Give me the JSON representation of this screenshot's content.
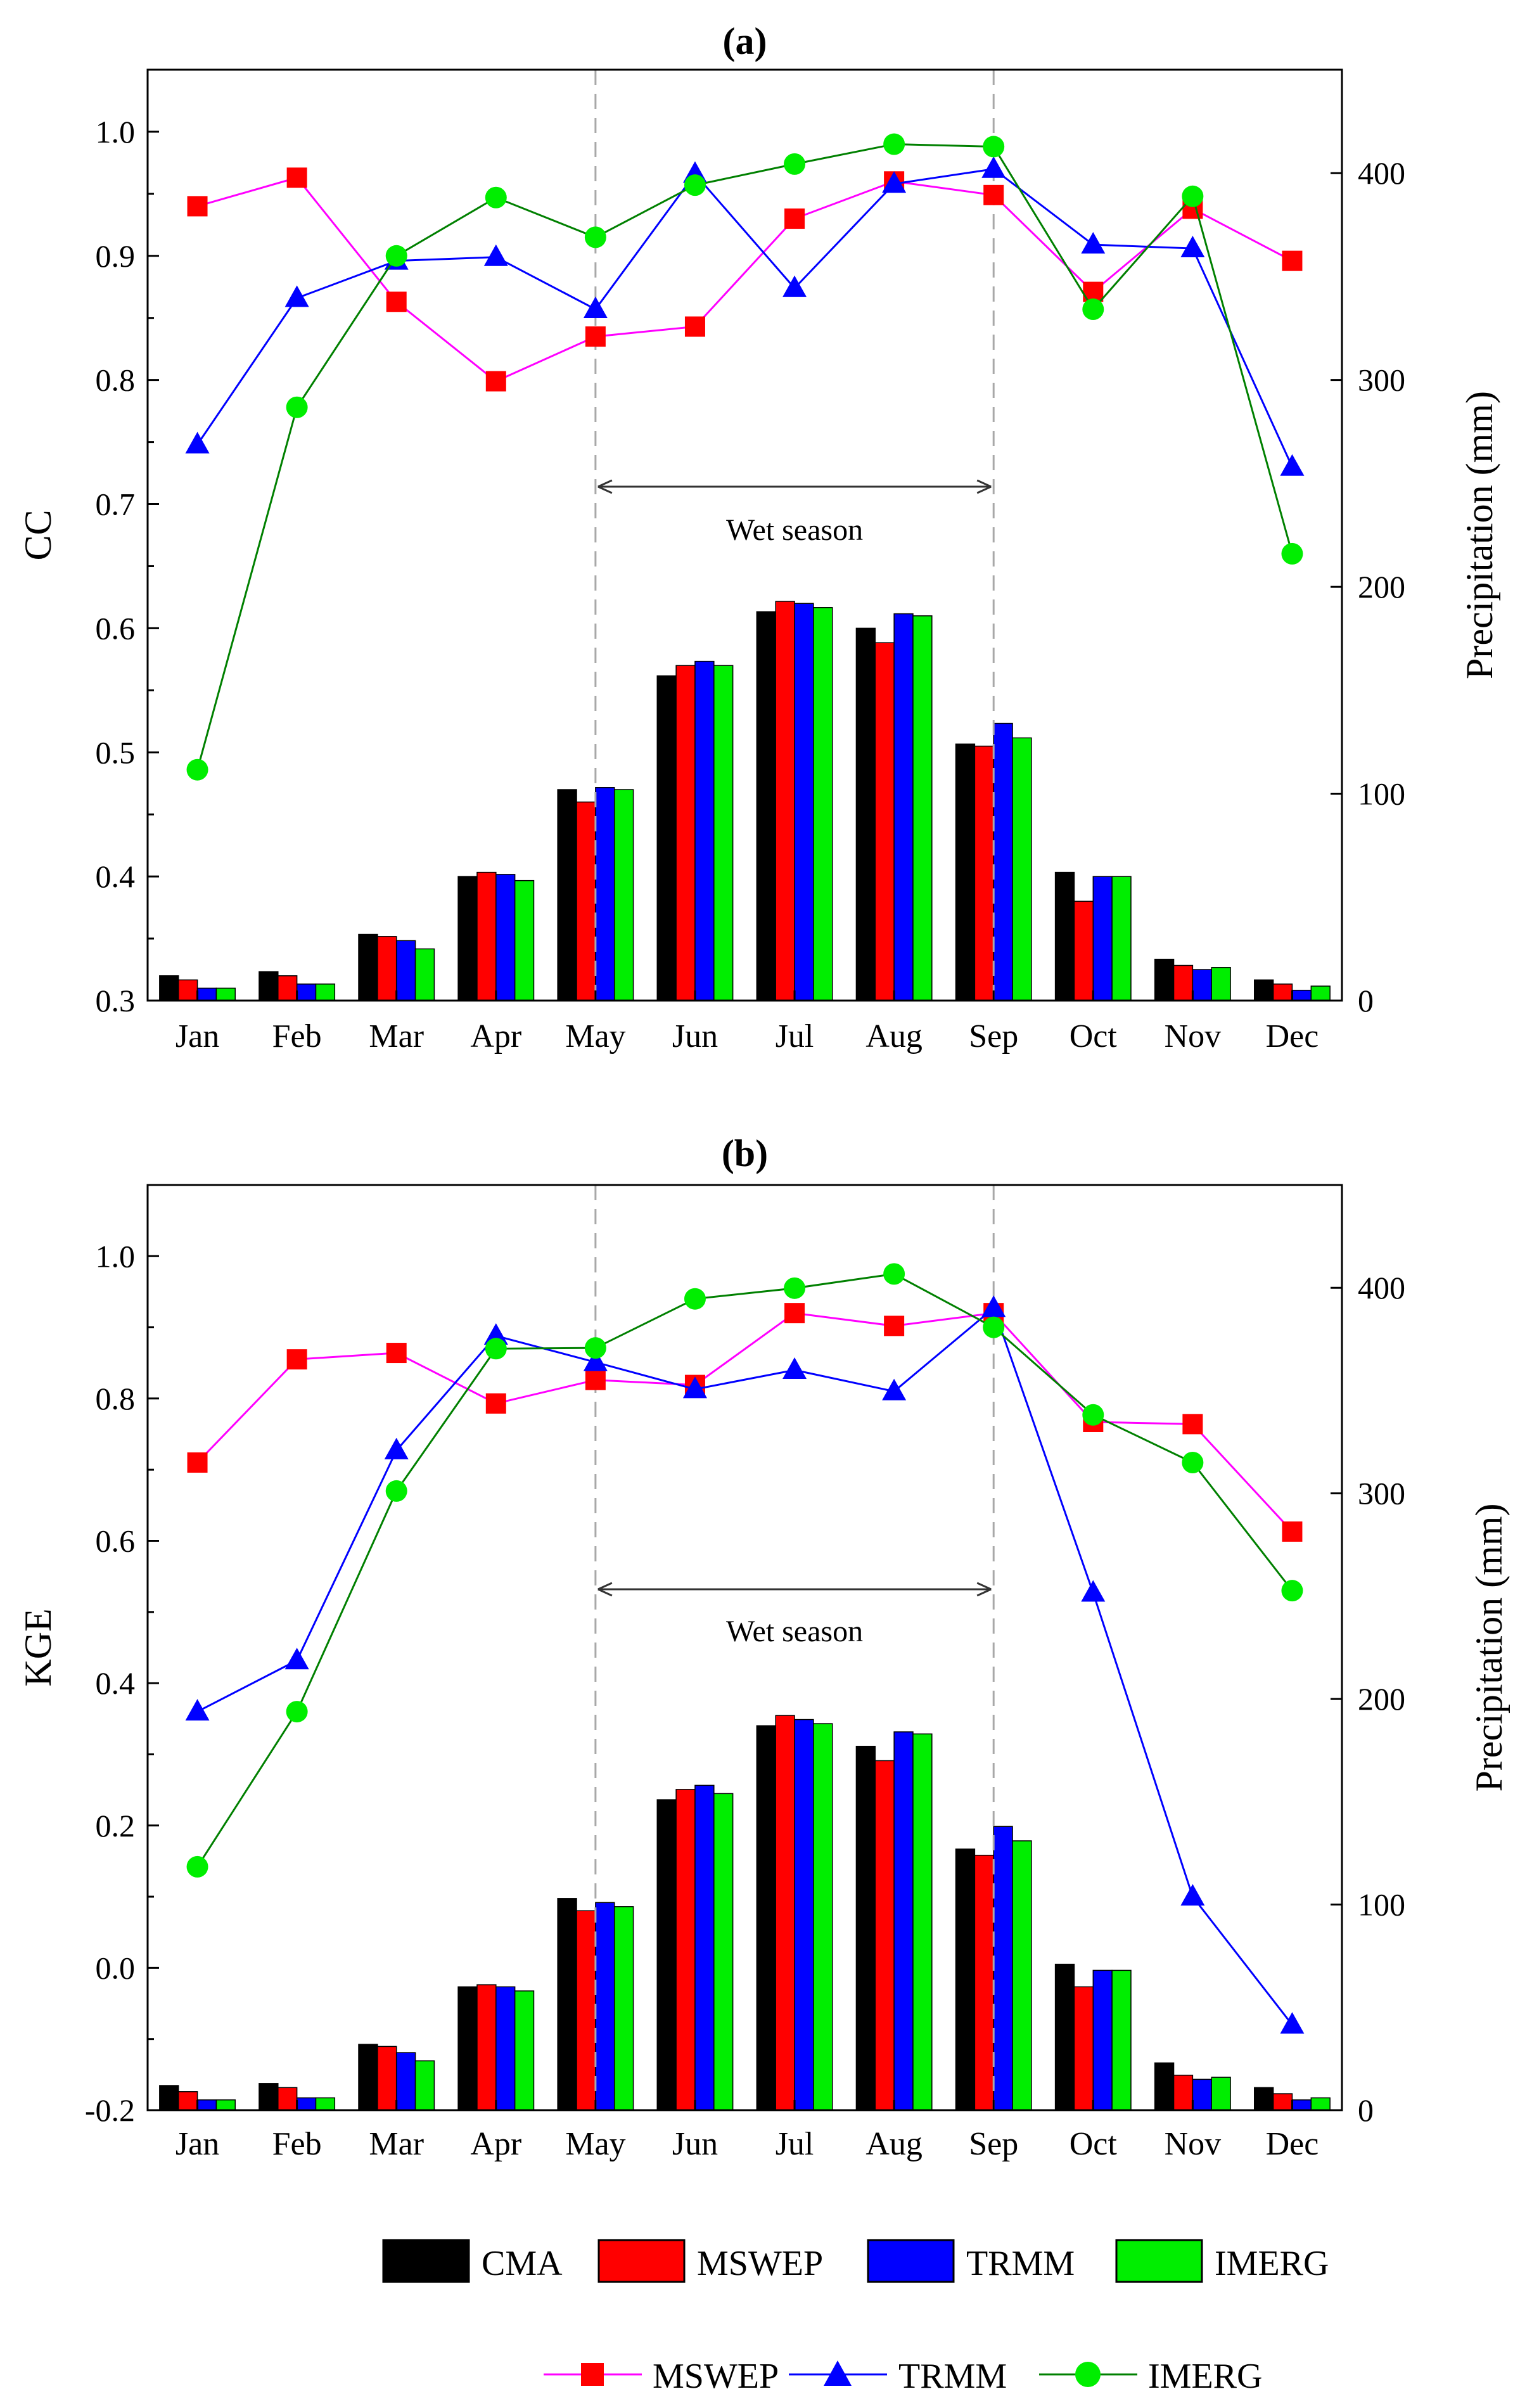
{
  "months": [
    "Jan",
    "Feb",
    "Mar",
    "Apr",
    "May",
    "Jun",
    "Jul",
    "Aug",
    "Sep",
    "Oct",
    "Nov",
    "Dec"
  ],
  "colors": {
    "bar_CMA": "#000000",
    "bar_MSWEP": "#ff0000",
    "bar_TRMM": "#0000ff",
    "bar_IMERG": "#00ee00",
    "line_MSWEP": "#ff00ff",
    "line_MSWEP_marker": "#ff0000",
    "line_TRMM": "#0000ff",
    "line_IMERG": "#008000",
    "line_IMERG_marker": "#00ee00"
  },
  "bar_legend": {
    "items": [
      {
        "label": "CMA",
        "color": "#000000"
      },
      {
        "label": "MSWEP",
        "color": "#ff0000"
      },
      {
        "label": "TRMM",
        "color": "#0000ff"
      },
      {
        "label": "IMERG",
        "color": "#00ee00"
      }
    ]
  },
  "line_legend": {
    "items": [
      {
        "label": "MSWEP",
        "marker": "square"
      },
      {
        "label": "TRMM",
        "marker": "triangle"
      },
      {
        "label": "IMERG",
        "marker": "circle"
      }
    ]
  },
  "chart_data": [
    {
      "type": "bar+line",
      "title": "(a)",
      "ylabel": "CC",
      "y2label": "Precipitation (mm)",
      "ylim": [
        0.3,
        1.05
      ],
      "yticks": [
        "0.3",
        "0.4",
        "0.5",
        "0.6",
        "0.7",
        "0.8",
        "0.9",
        "1.0"
      ],
      "y2lim": [
        0,
        450
      ],
      "y2ticks": [
        "0",
        "100",
        "200",
        "300",
        "400"
      ],
      "wet_season_label": "Wet season",
      "wet_season_range": [
        "May",
        "Sep"
      ],
      "bars": [
        {
          "name": "CMA",
          "values": [
            12,
            14,
            32,
            60,
            102,
            157,
            188,
            180,
            124,
            62,
            20,
            10
          ]
        },
        {
          "name": "MSWEP",
          "values": [
            10,
            12,
            31,
            62,
            96,
            162,
            193,
            173,
            123,
            48,
            17,
            8
          ]
        },
        {
          "name": "TRMM",
          "values": [
            6,
            8,
            29,
            61,
            103,
            164,
            192,
            187,
            134,
            60,
            15,
            5
          ]
        },
        {
          "name": "IMERG",
          "values": [
            6,
            8,
            25,
            58,
            102,
            162,
            190,
            186,
            127,
            60,
            16,
            7
          ]
        }
      ],
      "lines": [
        {
          "name": "MSWEP",
          "marker": "square",
          "values": [
            0.94,
            0.963,
            0.863,
            0.799,
            0.835,
            0.843,
            0.93,
            0.96,
            0.949,
            0.871,
            0.938,
            0.896
          ]
        },
        {
          "name": "TRMM",
          "marker": "triangle",
          "values": [
            0.748,
            0.866,
            0.896,
            0.899,
            0.857,
            0.966,
            0.874,
            0.958,
            0.97,
            0.909,
            0.906,
            0.73
          ]
        },
        {
          "name": "IMERG",
          "marker": "circle",
          "values": [
            0.486,
            0.778,
            0.9,
            0.947,
            0.915,
            0.957,
            0.974,
            0.99,
            0.988,
            0.857,
            0.948,
            0.66
          ]
        }
      ]
    },
    {
      "type": "bar+line",
      "title": "(b)",
      "ylabel": "KGE",
      "y2label": "Precipitation (mm)",
      "ylim": [
        -0.2,
        1.1
      ],
      "yticks": [
        "-0.2",
        "0.0",
        "0.2",
        "0.4",
        "0.6",
        "0.8",
        "1.0"
      ],
      "y2lim": [
        0,
        450
      ],
      "y2ticks": [
        "0",
        "100",
        "200",
        "300",
        "400"
      ],
      "wet_season_label": "Wet season",
      "wet_season_range": [
        "May",
        "Sep"
      ],
      "bars": [
        {
          "name": "CMA",
          "values": [
            12,
            13,
            32,
            60,
            103,
            151,
            187,
            177,
            127,
            71,
            23,
            11
          ]
        },
        {
          "name": "MSWEP",
          "values": [
            9,
            11,
            31,
            61,
            97,
            156,
            192,
            170,
            124,
            60,
            17,
            8
          ]
        },
        {
          "name": "TRMM",
          "values": [
            5,
            6,
            28,
            60,
            101,
            158,
            190,
            184,
            138,
            68,
            15,
            5
          ]
        },
        {
          "name": "IMERG",
          "values": [
            5,
            6,
            24,
            58,
            99,
            154,
            188,
            183,
            131,
            68,
            16,
            6
          ]
        }
      ],
      "lines": [
        {
          "name": "MSWEP",
          "marker": "square",
          "values": [
            0.71,
            0.855,
            0.864,
            0.793,
            0.826,
            0.819,
            0.92,
            0.902,
            0.92,
            0.767,
            0.764,
            0.613
          ]
        },
        {
          "name": "TRMM",
          "marker": "triangle",
          "values": [
            0.36,
            0.432,
            0.727,
            0.888,
            0.851,
            0.813,
            0.84,
            0.81,
            0.927,
            0.527,
            0.1,
            -0.08
          ]
        },
        {
          "name": "IMERG",
          "marker": "circle",
          "values": [
            0.142,
            0.36,
            0.67,
            0.87,
            0.871,
            0.94,
            0.955,
            0.975,
            0.9,
            0.777,
            0.71,
            0.53
          ]
        }
      ]
    }
  ]
}
